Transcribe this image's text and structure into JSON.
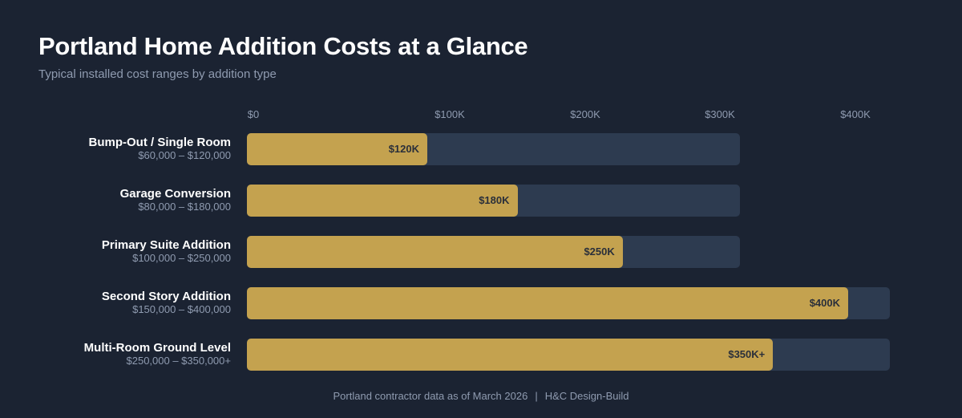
{
  "title": "Portland Home Addition Costs at a Glance",
  "subtitle": "Typical installed cost ranges by addition type",
  "colors": {
    "background": "#1b2332",
    "track": "#2d3b50",
    "bar": "#c4a24f",
    "bar_label": "#2a2f3a"
  },
  "chart_data": {
    "type": "bar",
    "orientation": "horizontal",
    "title": "Portland Home Addition Costs at a Glance",
    "subtitle": "Typical installed cost ranges by addition type",
    "x_ticks": [
      "$0",
      "$100K",
      "$200K",
      "$300K",
      "$400K"
    ],
    "xlim": [
      0,
      400000
    ],
    "grid": false,
    "categories": [
      "Bump-Out / Single Room",
      "Garage Conversion",
      "Primary Suite Addition",
      "Second Story Addition",
      "Multi-Room Ground Level"
    ],
    "ranges": [
      "$60,000 – $120,000",
      "$80,000 – $180,000",
      "$100,000 – $250,000",
      "$150,000 – $400,000",
      "$250,000 – $350,000+"
    ],
    "values": [
      120000,
      180000,
      250000,
      400000,
      350000
    ],
    "value_labels": [
      "$120K",
      "$180K",
      "$250K",
      "$400K",
      "$350K+"
    ]
  },
  "footer": {
    "source": "Portland contractor data as of March 2026",
    "separator": "|",
    "brand": "H&C Design-Build"
  }
}
